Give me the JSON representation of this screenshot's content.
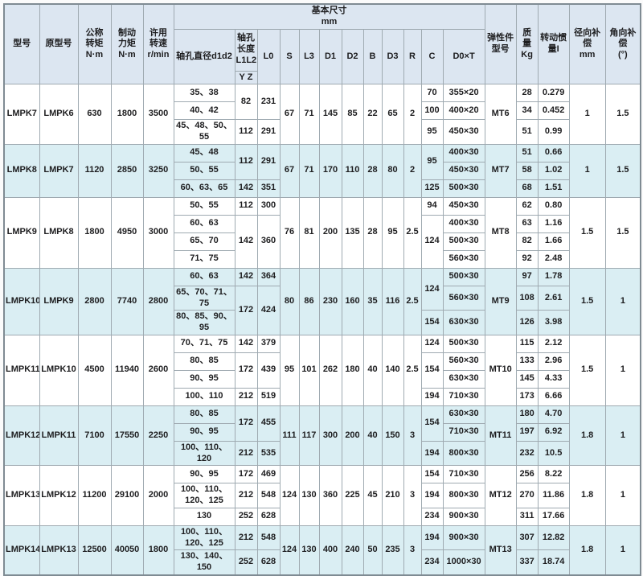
{
  "colors": {
    "header_bg": "#dce6f1",
    "alt_group_bg": "#daeef3",
    "plain_group_bg": "#ffffff",
    "grid_border": "#9faab1",
    "outer_border": "#7f8b93",
    "text": "#1d1d1f"
  },
  "table": {
    "header": {
      "model": "型号",
      "old_model": "原型号",
      "nominal_torque": "公称\n转矩\nN·m",
      "brake_torque": "制动\n力矩\nN·m",
      "speed": "许用\n转速\nr/min",
      "basic_dim": "基本尺寸\nmm",
      "bore_dia": "轴孔直径d1d2",
      "bore_len": "轴孔\n长度\nL1L2",
      "yz": "Y Z",
      "l0": "L0",
      "s": "S",
      "l3": "L3",
      "d1": "D1",
      "d2": "D2",
      "b": "B",
      "d3": "D3",
      "r": "R",
      "c": "C",
      "d0t": "D0×T",
      "elastic": "弹性件\n型号",
      "mass": "质\n量\nKg",
      "inertia": "转动惯\n量I",
      "radial": "径向补偿\nmm",
      "angular": "角向补偿\n(°)"
    },
    "groups": [
      {
        "model": "LMPK7",
        "old": "LMPK6",
        "tn": "630",
        "tb": "1800",
        "n": "3500",
        "s": "67",
        "l3": "71",
        "d1": "145",
        "d2": "85",
        "b": "22",
        "d3": "65",
        "r": "2",
        "elastic": "MT6",
        "radial": "1",
        "angular": "1.5",
        "alt": false,
        "rows": [
          {
            "bores": "35、38",
            "l1l2": {
              "v": "82",
              "rs": 2
            },
            "l0": {
              "v": "231",
              "rs": 2
            },
            "c": {
              "v": "70"
            },
            "d0t": "355×20",
            "m": "28",
            "i": "0.279"
          },
          {
            "bores": "40、42",
            "c": {
              "v": "100"
            },
            "d0t": "400×20",
            "m": "34",
            "i": "0.452"
          },
          {
            "bores": "45、48、50、55",
            "l1l2": {
              "v": "112"
            },
            "l0": {
              "v": "291"
            },
            "c": {
              "v": "95"
            },
            "d0t": "450×30",
            "m": "51",
            "i": "0.99"
          }
        ]
      },
      {
        "model": "LMPK8",
        "old": "LMPK7",
        "tn": "1120",
        "tb": "2850",
        "n": "3250",
        "s": "67",
        "l3": "71",
        "d1": "170",
        "d2": "110",
        "b": "28",
        "d3": "80",
        "r": "2",
        "elastic": "MT7",
        "radial": "1",
        "angular": "1.5",
        "alt": true,
        "rows": [
          {
            "bores": "45、48",
            "l1l2": {
              "v": "112",
              "rs": 2
            },
            "l0": {
              "v": "291",
              "rs": 2
            },
            "c": {
              "v": "95",
              "rs": 2
            },
            "d0t": "400×30",
            "m": "51",
            "i": "0.66"
          },
          {
            "bores": "50、55",
            "d0t": "450×30",
            "m": "58",
            "i": "1.02"
          },
          {
            "bores": "60、63、65",
            "l1l2": {
              "v": "142"
            },
            "l0": {
              "v": "351"
            },
            "c": {
              "v": "125"
            },
            "d0t": "500×30",
            "m": "68",
            "i": "1.51"
          }
        ]
      },
      {
        "model": "LMPK9",
        "old": "LMPK8",
        "tn": "1800",
        "tb": "4950",
        "n": "3000",
        "s": "76",
        "l3": "81",
        "d1": "200",
        "d2": "135",
        "b": "28",
        "d3": "95",
        "r": "2.5",
        "elastic": "MT8",
        "radial": "1.5",
        "angular": "1.5",
        "alt": false,
        "rows": [
          {
            "bores": "50、55",
            "l1l2": {
              "v": "112"
            },
            "l0": {
              "v": "300"
            },
            "c": {
              "v": "94"
            },
            "d0t": "450×30",
            "m": "62",
            "i": "0.80"
          },
          {
            "bores": "60、63",
            "l1l2": {
              "v": "142",
              "rs": 3
            },
            "l0": {
              "v": "360",
              "rs": 3
            },
            "c": {
              "v": "124",
              "rs": 3
            },
            "d0t": "400×30",
            "m": "63",
            "i": "1.16"
          },
          {
            "bores": "65、70",
            "d0t": "500×30",
            "m": "82",
            "i": "1.66"
          },
          {
            "bores": "71、75",
            "d0t": "560×30",
            "m": "92",
            "i": "2.48"
          }
        ]
      },
      {
        "model": "LMPK10",
        "old": "LMPK9",
        "tn": "2800",
        "tb": "7740",
        "n": "2800",
        "s": "80",
        "l3": "86",
        "d1": "230",
        "d2": "160",
        "b": "35",
        "d3": "116",
        "r": "2.5",
        "elastic": "MT9",
        "radial": "1.5",
        "angular": "1",
        "alt": true,
        "rows": [
          {
            "bores": "60、63",
            "l1l2": {
              "v": "142"
            },
            "l0": {
              "v": "364"
            },
            "c": {
              "v": "124",
              "rs": 2
            },
            "d0t": "500×30",
            "m": "97",
            "i": "1.78"
          },
          {
            "bores": "65、70、71、75",
            "l1l2": {
              "v": "172",
              "rs": 2
            },
            "l0": {
              "v": "424",
              "rs": 2
            },
            "d0t": "560×30",
            "m": "108",
            "i": "2.61"
          },
          {
            "bores": "80、85、90、95",
            "c": {
              "v": "154"
            },
            "d0t": "630×30",
            "m": "126",
            "i": "3.98"
          }
        ]
      },
      {
        "model": "LMPK11",
        "old": "LMPK10",
        "tn": "4500",
        "tb": "11940",
        "n": "2600",
        "s": "95",
        "l3": "101",
        "d1": "262",
        "d2": "180",
        "b": "40",
        "d3": "140",
        "r": "2.5",
        "elastic": "MT10",
        "radial": "1.5",
        "angular": "1",
        "alt": false,
        "rows": [
          {
            "bores": "70、71、75",
            "l1l2": {
              "v": "142"
            },
            "l0": {
              "v": "379"
            },
            "c": {
              "v": "124"
            },
            "d0t": "500×30",
            "m": "115",
            "i": "2.12"
          },
          {
            "bores": "80、85",
            "l1l2": {
              "v": "172",
              "rs": 2
            },
            "l0": {
              "v": "439",
              "rs": 2
            },
            "c": {
              "v": "154",
              "rs": 2
            },
            "d0t": "560×30",
            "m": "133",
            "i": "2.96"
          },
          {
            "bores": "90、95",
            "d0t": "630×30",
            "m": "145",
            "i": "4.33"
          },
          {
            "bores": "100、110",
            "l1l2": {
              "v": "212"
            },
            "l0": {
              "v": "519"
            },
            "c": {
              "v": "194"
            },
            "d0t": "710×30",
            "m": "173",
            "i": "6.66"
          }
        ]
      },
      {
        "model": "LMPK12",
        "old": "LMPK11",
        "tn": "7100",
        "tb": "17550",
        "n": "2250",
        "s": "111",
        "l3": "117",
        "d1": "300",
        "d2": "200",
        "b": "40",
        "d3": "150",
        "r": "3",
        "elastic": "MT11",
        "radial": "1.8",
        "angular": "1",
        "alt": true,
        "rows": [
          {
            "bores": "80、85",
            "l1l2": {
              "v": "172",
              "rs": 2
            },
            "l0": {
              "v": "455",
              "rs": 2
            },
            "c": {
              "v": "154",
              "rs": 2
            },
            "d0t": "630×30",
            "m": "180",
            "i": "4.70"
          },
          {
            "bores": "90、95",
            "d0t": "710×30",
            "m": "197",
            "i": "6.92"
          },
          {
            "bores": "100、110、120",
            "l1l2": {
              "v": "212"
            },
            "l0": {
              "v": "535"
            },
            "c": {
              "v": "194"
            },
            "d0t": "800×30",
            "m": "232",
            "i": "10.5"
          }
        ]
      },
      {
        "model": "LMPK13",
        "old": "LMPK12",
        "tn": "11200",
        "tb": "29100",
        "n": "2000",
        "s": "124",
        "l3": "130",
        "d1": "360",
        "d2": "225",
        "b": "45",
        "d3": "210",
        "r": "3",
        "elastic": "MT12",
        "radial": "1.8",
        "angular": "1",
        "alt": false,
        "rows": [
          {
            "bores": "90、95",
            "l1l2": {
              "v": "172"
            },
            "l0": {
              "v": "469"
            },
            "c": {
              "v": "154"
            },
            "d0t": "710×30",
            "m": "256",
            "i": "8.22"
          },
          {
            "bores": "100、110、\n120、125",
            "l1l2": {
              "v": "212"
            },
            "l0": {
              "v": "548"
            },
            "c": {
              "v": "194"
            },
            "d0t": "800×30",
            "m": "270",
            "i": "11.86"
          },
          {
            "bores": "130",
            "l1l2": {
              "v": "252"
            },
            "l0": {
              "v": "628"
            },
            "c": {
              "v": "234"
            },
            "d0t": "900×30",
            "m": "311",
            "i": "17.66"
          }
        ]
      },
      {
        "model": "LMPK14",
        "old": "LMPK13",
        "tn": "12500",
        "tb": "40050",
        "n": "1800",
        "s": "124",
        "l3": "130",
        "d1": "400",
        "d2": "240",
        "b": "50",
        "d3": "235",
        "r": "3",
        "elastic": "MT13",
        "radial": "1.8",
        "angular": "1",
        "alt": true,
        "rows": [
          {
            "bores": "100、110、\n120、125",
            "l1l2": {
              "v": "212"
            },
            "l0": {
              "v": "548"
            },
            "c": {
              "v": "194"
            },
            "d0t": "900×30",
            "m": "307",
            "i": "12.82"
          },
          {
            "bores": "130、140、150",
            "l1l2": {
              "v": "252"
            },
            "l0": {
              "v": "628"
            },
            "c": {
              "v": "234"
            },
            "d0t": "1000×30",
            "m": "337",
            "i": "18.74"
          }
        ]
      }
    ]
  }
}
